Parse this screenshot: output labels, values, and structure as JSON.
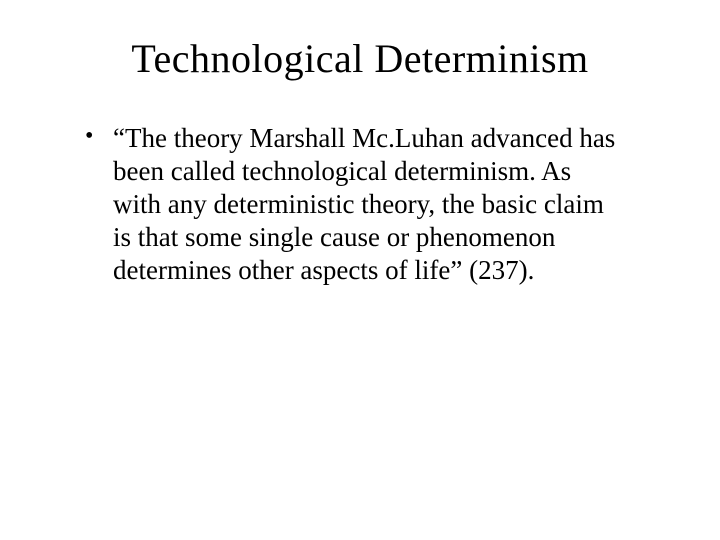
{
  "slide": {
    "title": "Technological Determinism",
    "bullets": [
      "“The theory Marshall Mc.Luhan advanced has been called technological determinism. As with any deterministic theory, the basic claim is that some single cause or phenomenon determines other aspects of life” (237)."
    ]
  },
  "style": {
    "background_color": "#ffffff",
    "text_color": "#000000",
    "title_fontsize": 40,
    "body_fontsize": 27,
    "font_family": "Times New Roman"
  }
}
